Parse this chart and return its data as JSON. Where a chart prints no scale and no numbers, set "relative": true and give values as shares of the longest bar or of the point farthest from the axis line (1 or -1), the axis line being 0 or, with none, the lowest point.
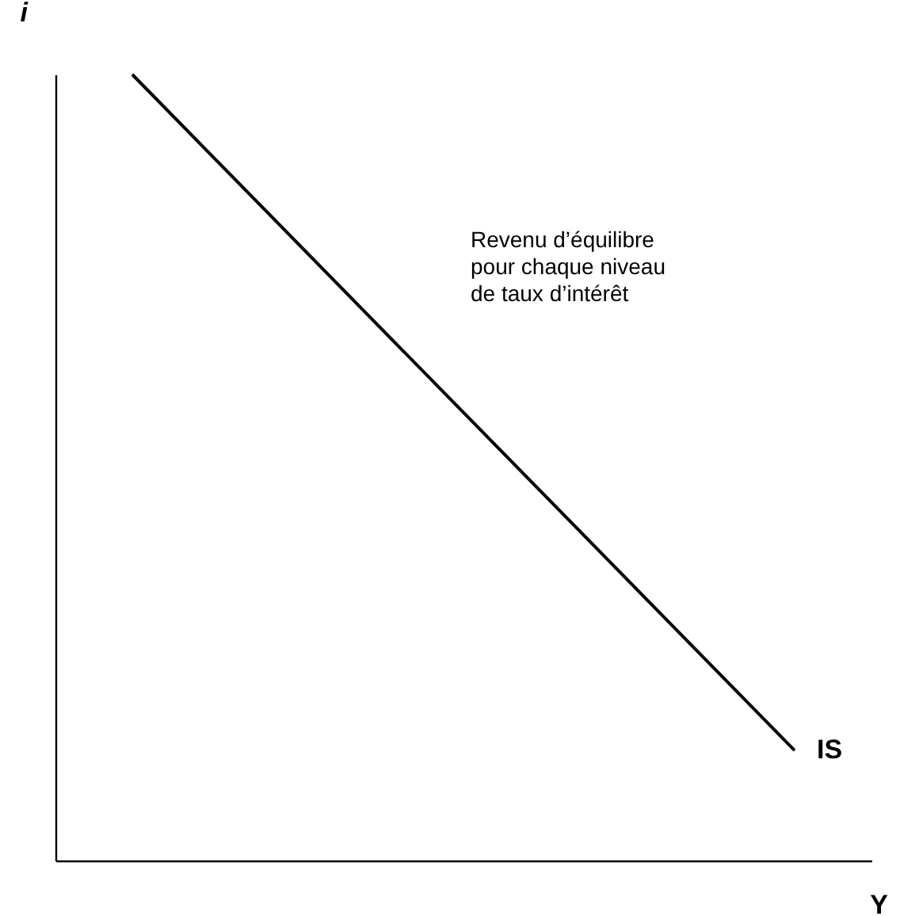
{
  "chart_data": {
    "type": "line",
    "relative": true,
    "xlabel": "Y",
    "ylabel": "i",
    "categories": [
      null,
      null
    ],
    "series": [
      {
        "name": "IS",
        "color": "#000000",
        "values": [
          1,
          0.14
        ]
      }
    ],
    "annotations": [
      "Revenu d’équilibre\npour chaque niveau\nde taux d’intérêt"
    ],
    "grid": false
  }
}
